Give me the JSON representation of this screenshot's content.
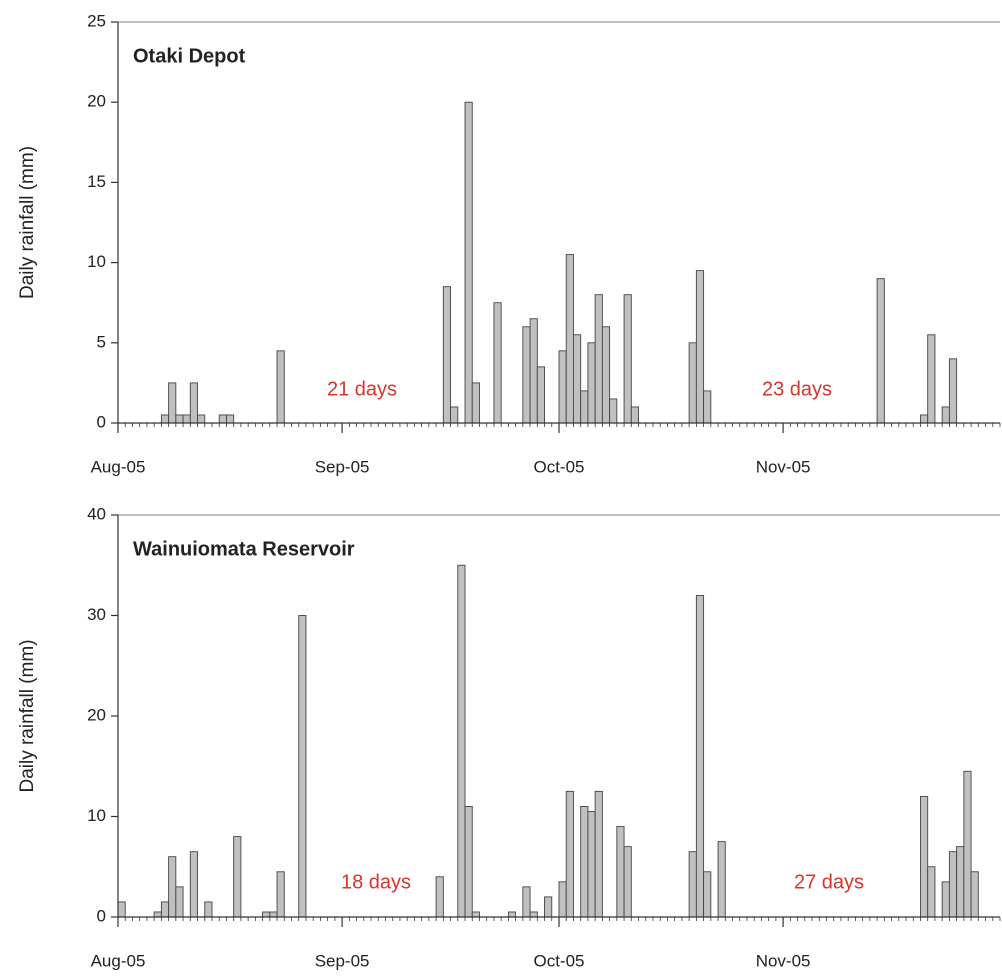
{
  "chart_data": [
    {
      "type": "bar",
      "title": "Otaki Depot",
      "ylabel": "Daily rainfall (mm)",
      "color": "#c0c0c0",
      "xlim": [
        0,
        122
      ],
      "xticks": [
        {
          "value": 0,
          "label": "Aug-05"
        },
        {
          "value": 31,
          "label": "Sep-05"
        },
        {
          "value": 61,
          "label": "Oct-05"
        },
        {
          "value": 92,
          "label": "Nov-05"
        }
      ],
      "ylim": [
        0,
        25
      ],
      "yticks": [
        0,
        5,
        10,
        15,
        20,
        25
      ],
      "x": [
        6,
        7,
        8,
        9,
        10,
        11,
        14,
        15,
        22,
        45,
        46,
        48,
        49,
        52,
        56,
        57,
        58,
        61,
        62,
        63,
        64,
        65,
        66,
        67,
        68,
        70,
        71,
        79,
        80,
        81,
        105,
        111,
        112,
        114,
        115
      ],
      "values": [
        0.5,
        2.5,
        0.5,
        0.5,
        2.5,
        0.5,
        0.5,
        0.5,
        4.5,
        8.5,
        1,
        20,
        2.5,
        7.5,
        6,
        6.5,
        3.5,
        4.5,
        10.5,
        5.5,
        2,
        5,
        8,
        6,
        1.5,
        8,
        1,
        5,
        9.5,
        2,
        9,
        0.5,
        5.5,
        1,
        4
      ],
      "annotations": [
        "21 days",
        "23 days"
      ]
    },
    {
      "type": "bar",
      "title": "Wainuiomata Reservoir",
      "ylabel": "Daily rainfall (mm)",
      "color": "#c0c0c0",
      "xlim": [
        0,
        122
      ],
      "xticks": [
        {
          "value": 0,
          "label": "Aug-05"
        },
        {
          "value": 31,
          "label": "Sep-05"
        },
        {
          "value": 61,
          "label": "Oct-05"
        },
        {
          "value": 92,
          "label": "Nov-05"
        }
      ],
      "ylim": [
        0,
        40
      ],
      "yticks": [
        0,
        10,
        20,
        30,
        40
      ],
      "x": [
        0,
        5,
        6,
        7,
        8,
        10,
        12,
        16,
        20,
        21,
        22,
        25,
        44,
        47,
        48,
        49,
        54,
        56,
        57,
        59,
        61,
        62,
        64,
        65,
        66,
        69,
        70,
        79,
        80,
        81,
        83,
        111,
        112,
        114,
        115,
        116,
        117,
        118
      ],
      "values": [
        1.5,
        0.5,
        1.5,
        6,
        3,
        6.5,
        1.5,
        8,
        0.5,
        0.5,
        4.5,
        30,
        4,
        35,
        11,
        0.5,
        0.5,
        3,
        0.5,
        2,
        3.5,
        12.5,
        11,
        10.5,
        12.5,
        9,
        7,
        6.5,
        32,
        4.5,
        7.5,
        12,
        5,
        3.5,
        6.5,
        7,
        14.5,
        4.5
      ],
      "annotations": [
        "18 days",
        "27 days"
      ]
    }
  ]
}
